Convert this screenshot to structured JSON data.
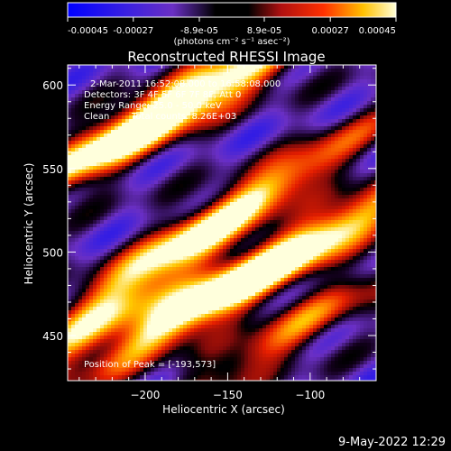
{
  "chart_data": {
    "type": "heatmap",
    "title": "Reconstructed RHESSI Image",
    "xlabel": "Heliocentric X (arcsec)",
    "ylabel": "Heliocentric Y (arcsec)",
    "xlim": [
      -247,
      -60
    ],
    "ylim": [
      423,
      612
    ],
    "x_ticks": [
      -200,
      -150,
      -100
    ],
    "y_ticks": [
      450,
      500,
      550,
      600
    ],
    "colorbar": {
      "range": [
        -0.00045,
        0.00045
      ],
      "tick_values": [
        -0.00045,
        -0.00027,
        -8.9e-05,
        8.9e-05,
        0.00027,
        0.00045
      ],
      "tick_labels": [
        "-0.00045",
        "-0.00027",
        "-8.9e-05",
        "8.9e-05",
        "0.00027",
        "0.00045"
      ],
      "unit_label": "(photons cm⁻² s⁻¹ asec⁻²)",
      "colors": [
        "#0000ff",
        "#6a2fc4",
        "#000000",
        "#b01010",
        "#ff3000",
        "#ffc000",
        "#ffffd8"
      ]
    },
    "annotations": {
      "time": "2-Mar-2011 16:52:08.000 to 16:58:08.000",
      "detectors": "Detectors: 3F 4F 5F 6F 7F 8F, Att 0",
      "energy": "Energy Range: 25.0 - 50.0 keV",
      "method": "Clean",
      "counts": "Total counts: 8.26E+03",
      "peak": "Position of Peak = [-193,573]"
    },
    "peak_position": [
      -193,
      573
    ],
    "stripes": [
      {
        "x": -215,
        "y": 570,
        "amp": 1.0
      },
      {
        "x": -150,
        "y": 600,
        "amp": 0.7
      },
      {
        "x": -185,
        "y": 500,
        "amp": 0.7
      },
      {
        "x": -120,
        "y": 540,
        "amp": 0.55
      },
      {
        "x": -165,
        "y": 470,
        "amp": 0.95
      },
      {
        "x": -95,
        "y": 505,
        "amp": 0.8
      },
      {
        "x": -115,
        "y": 450,
        "amp": 0.55
      },
      {
        "x": -230,
        "y": 455,
        "amp": 0.6
      }
    ],
    "timestamp": "9-May-2022 12:29"
  }
}
